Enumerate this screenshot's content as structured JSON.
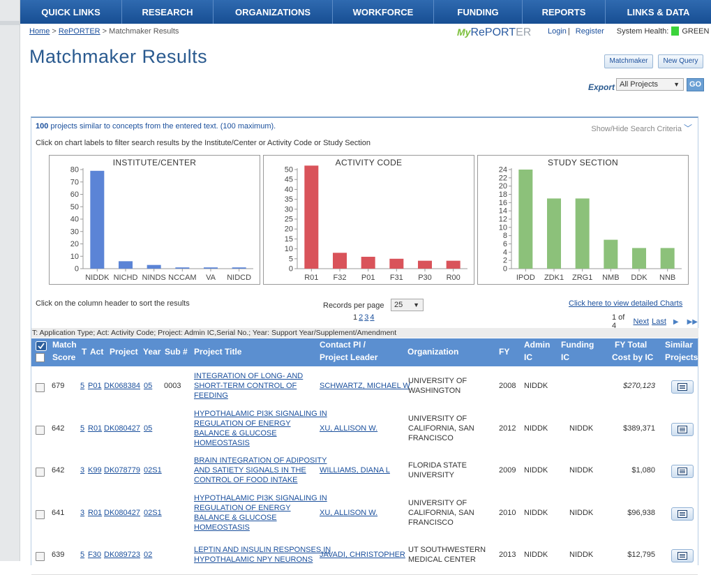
{
  "nav": [
    "QUICK LINKS",
    "RESEARCH",
    "ORGANIZATIONS",
    "WORKFORCE",
    "FUNDING",
    "REPORTS",
    "LINKS & DATA"
  ],
  "breadcrumb": {
    "home": "Home",
    "reporter": "RePORTER",
    "current": "Matchmaker Results",
    "sep": ">"
  },
  "logo": {
    "my": "My",
    "rep": "RePORT",
    "er": "ER"
  },
  "login": {
    "login": "Login",
    "sep": "|",
    "register": "Register",
    "health_label": "System Health:",
    "health_value": "GREEN",
    "health_color": "#3bd33b"
  },
  "page_title": "Matchmaker Results",
  "buttons": {
    "matchmaker": "Matchmaker",
    "new_query": "New Query",
    "go": "GO"
  },
  "export": {
    "label": "Export",
    "selected": "All Projects"
  },
  "summary": {
    "count": "100",
    "text": " projects similar to concepts from the entered text. (100 maximum)."
  },
  "show_hide": "Show/Hide Search Criteria",
  "hint_charts": "Click on chart labels to filter search results by the Institute/Center or Activity Code or Study Section",
  "chart_data": [
    {
      "type": "bar",
      "title": "INSTITUTE/CENTER",
      "categories": [
        "NIDDK",
        "NICHD",
        "NINDS",
        "NCCAM",
        "VA",
        "NIDCD"
      ],
      "values": [
        79,
        6,
        3,
        1,
        1,
        1
      ],
      "ylim": [
        0,
        80
      ],
      "yticks": [
        0,
        10,
        20,
        30,
        40,
        50,
        60,
        70,
        80
      ],
      "color": "#5b84d6"
    },
    {
      "type": "bar",
      "title": "ACTIVITY CODE",
      "categories": [
        "R01",
        "F32",
        "P01",
        "F31",
        "P30",
        "R00"
      ],
      "values": [
        52,
        8,
        6,
        5,
        4,
        4
      ],
      "ylim": [
        0,
        50
      ],
      "yticks": [
        0,
        5,
        10,
        15,
        20,
        25,
        30,
        35,
        40,
        45,
        50
      ],
      "color": "#d9535a"
    },
    {
      "type": "bar",
      "title": "STUDY SECTION",
      "categories": [
        "IPOD",
        "ZDK1",
        "ZRG1",
        "NMB",
        "DDK",
        "NNB"
      ],
      "values": [
        24,
        17,
        17,
        7,
        5,
        5
      ],
      "ylim": [
        0,
        24
      ],
      "yticks": [
        0,
        2,
        4,
        6,
        8,
        10,
        12,
        14,
        16,
        18,
        20,
        22,
        24
      ],
      "color": "#8cc17a"
    }
  ],
  "hint_sort": "Click on the column header to sort the results",
  "records_per_page": {
    "label": "Records per page",
    "value": "25"
  },
  "pages": [
    "1",
    "2",
    "3",
    "4"
  ],
  "detailed_charts": "Click here to view detailed Charts",
  "pager": {
    "info": "1 of 4",
    "next": "Next",
    "last": "Last"
  },
  "legend": "T: Application Type; Act: Activity Code; Project: Admin IC,Serial No.; Year: Support Year/Supplement/Amendment",
  "columns": {
    "match": "Match",
    "score": "Score",
    "t": "T",
    "act": "Act",
    "project": "Project",
    "year": "Year",
    "sub": "Sub #",
    "title": "Project Title",
    "pi1": "Contact PI /",
    "pi2": "Project Leader",
    "org": "Organization",
    "fy": "FY",
    "admin1": "Admin",
    "admin2": "IC",
    "fund1": "Funding",
    "fund2": "IC",
    "cost1": "FY Total",
    "cost2": "Cost by IC",
    "sim1": "Similar",
    "sim2": "Projects"
  },
  "rows": [
    {
      "score": "679",
      "t": "5",
      "act": "P01",
      "project": "DK068384",
      "year": "05",
      "sub": "0003",
      "title": [
        "INTEGRATION OF LONG- AND",
        "SHORT-TERM CONTROL OF",
        "FEEDING"
      ],
      "pi": "SCHWARTZ, MICHAEL W",
      "org": [
        "UNIVERSITY OF",
        "WASHINGTON"
      ],
      "fy": "2008",
      "admin": "NIDDK",
      "funding": "",
      "cost": "$270,123"
    },
    {
      "score": "642",
      "t": "5",
      "act": "R01",
      "project": "DK080427",
      "year": "05",
      "sub": "",
      "title": [
        "HYPOTHALAMIC PI3K SIGNALING IN",
        "REGULATION OF ENERGY",
        "BALANCE & GLUCOSE",
        "HOMEOSTASIS"
      ],
      "pi": "XU, ALLISON W.",
      "org": [
        "UNIVERSITY OF",
        "CALIFORNIA, SAN",
        "FRANCISCO"
      ],
      "fy": "2012",
      "admin": "NIDDK",
      "funding": "NIDDK",
      "cost": "$389,371"
    },
    {
      "score": "642",
      "t": "3",
      "act": "K99",
      "project": "DK078779",
      "year": "02S1",
      "sub": "",
      "title": [
        "BRAIN INTEGRATION OF ADIPOSITY",
        "AND SATIETY SIGNALS IN THE",
        "CONTROL OF FOOD INTAKE"
      ],
      "pi": "WILLIAMS, DIANA L",
      "org": [
        "FLORIDA STATE",
        "UNIVERSITY"
      ],
      "fy": "2009",
      "admin": "NIDDK",
      "funding": "NIDDK",
      "cost": "$1,080"
    },
    {
      "score": "641",
      "t": "3",
      "act": "R01",
      "project": "DK080427",
      "year": "02S1",
      "sub": "",
      "title": [
        "HYPOTHALAMIC PI3K SIGNALING IN",
        "REGULATION OF ENERGY",
        "BALANCE & GLUCOSE",
        "HOMEOSTASIS"
      ],
      "pi": "XU, ALLISON W.",
      "org": [
        "UNIVERSITY OF",
        "CALIFORNIA, SAN",
        "FRANCISCO"
      ],
      "fy": "2010",
      "admin": "NIDDK",
      "funding": "NIDDK",
      "cost": "$96,938"
    },
    {
      "score": "639",
      "t": "5",
      "act": "F30",
      "project": "DK089723",
      "year": "02",
      "sub": "",
      "title": [
        "LEPTIN AND INSULIN RESPONSES IN",
        "HYPOTHALAMIC NPY NEURONS"
      ],
      "pi": "JAVADI, CHRISTOPHER",
      "org": [
        "UT SOUTHWESTERN",
        "MEDICAL CENTER"
      ],
      "fy": "2013",
      "admin": "NIDDK",
      "funding": "NIDDK",
      "cost": "$12,795"
    }
  ]
}
